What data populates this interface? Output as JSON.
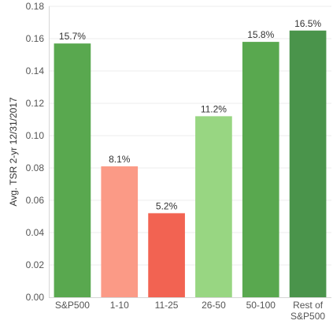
{
  "chart_data": {
    "type": "bar",
    "ylabel": "Avg. TSR 2-yr 12/31/2017",
    "ylim": [
      0,
      0.18
    ],
    "yticks": [
      "0.00",
      "0.02",
      "0.04",
      "0.06",
      "0.08",
      "0.10",
      "0.12",
      "0.14",
      "0.16",
      "0.18"
    ],
    "grid": true,
    "categories": [
      [
        "S&P500"
      ],
      [
        "1-10"
      ],
      [
        "11-25"
      ],
      [
        "26-50"
      ],
      [
        "50-100"
      ],
      [
        "Rest of",
        "S&P500"
      ]
    ],
    "values": [
      0.157,
      0.081,
      0.052,
      0.112,
      0.158,
      0.165
    ],
    "data_labels": [
      "15.7%",
      "8.1%",
      "5.2%",
      "11.2%",
      "15.8%",
      "16.5%"
    ],
    "colors": [
      "#59a84f",
      "#fb9a86",
      "#f26352",
      "#98d682",
      "#59a84f",
      "#4a944b"
    ]
  }
}
